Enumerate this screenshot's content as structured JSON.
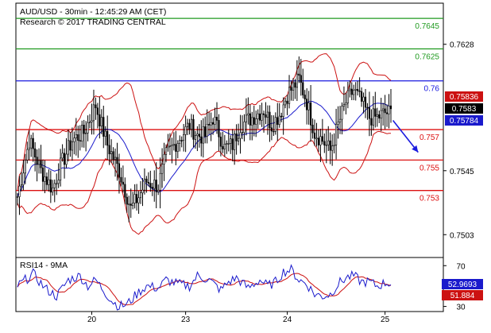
{
  "header": {
    "line1": "AUD/USD - 30min - 12:45:29 AM (CET)",
    "line2": "Research © 2017 TRADING CENTRAL"
  },
  "colors": {
    "resistance": "#1f9a1f",
    "pivot": "#1a1adf",
    "support": "#dd1111",
    "candle": "#000000",
    "bollinger": "#cc1111",
    "ma": "#1a1acc",
    "rsi": "#1a1acc",
    "rsi_ma": "#cc1111",
    "forecast_arrow": "#1a1adf"
  },
  "chart_data": [
    {
      "type": "candlestick",
      "ylim": [
        0.7488,
        0.7655
      ],
      "y_ticks": [
        "0.7628",
        "0.7545",
        "0.7503"
      ],
      "y_tick_values": [
        0.7628,
        0.7545,
        0.7503
      ],
      "x_ticks": [
        "20",
        "23",
        "24",
        "25"
      ],
      "x_tick_index": [
        38,
        86,
        138,
        188
      ],
      "n_bars": 192,
      "levels": [
        {
          "label": "0.7645",
          "value": 0.7645,
          "kind": "resistance"
        },
        {
          "label": "0.7625",
          "value": 0.7625,
          "kind": "resistance"
        },
        {
          "label": "0.76",
          "value": 0.7604,
          "kind": "pivot"
        },
        {
          "label": "0.757",
          "value": 0.7572,
          "kind": "support"
        },
        {
          "label": "0.755",
          "value": 0.7552,
          "kind": "support"
        },
        {
          "label": "0.753",
          "value": 0.7532,
          "kind": "support"
        }
      ],
      "price_tags": [
        {
          "label": "0.75836",
          "value": 0.75836,
          "kind": "bollinger"
        },
        {
          "label": "0.7583",
          "value": 0.7583,
          "kind": "last"
        },
        {
          "label": "0.75784",
          "value": 0.75784,
          "kind": "ma"
        }
      ],
      "path_points": [
        [
          0,
          0.7528
        ],
        [
          6,
          0.7565
        ],
        [
          12,
          0.7545
        ],
        [
          18,
          0.7533
        ],
        [
          22,
          0.7548
        ],
        [
          28,
          0.7565
        ],
        [
          34,
          0.757
        ],
        [
          40,
          0.7588
        ],
        [
          46,
          0.7562
        ],
        [
          52,
          0.7545
        ],
        [
          58,
          0.752
        ],
        [
          62,
          0.7528
        ],
        [
          66,
          0.7538
        ],
        [
          72,
          0.7535
        ],
        [
          76,
          0.7555
        ],
        [
          82,
          0.7565
        ],
        [
          88,
          0.7575
        ],
        [
          92,
          0.7568
        ],
        [
          96,
          0.7568
        ],
        [
          100,
          0.758
        ],
        [
          106,
          0.756
        ],
        [
          110,
          0.7562
        ],
        [
          114,
          0.7575
        ],
        [
          120,
          0.758
        ],
        [
          126,
          0.7585
        ],
        [
          130,
          0.7575
        ],
        [
          134,
          0.7582
        ],
        [
          138,
          0.7595
        ],
        [
          144,
          0.7605
        ],
        [
          148,
          0.759
        ],
        [
          152,
          0.757
        ],
        [
          156,
          0.7565
        ],
        [
          160,
          0.7558
        ],
        [
          164,
          0.7575
        ],
        [
          168,
          0.759
        ],
        [
          172,
          0.7598
        ],
        [
          176,
          0.759
        ],
        [
          180,
          0.758
        ],
        [
          184,
          0.758
        ],
        [
          188,
          0.7583
        ]
      ],
      "forecast": {
        "from": [
          188,
          0.7578
        ],
        "to": [
          196,
          0.7555
        ]
      }
    },
    {
      "type": "line",
      "title": "RSI14 - 9MA",
      "ylim": [
        25,
        78
      ],
      "y_ticks": [
        "70",
        "30"
      ],
      "y_tick_values": [
        70,
        30
      ],
      "tags": [
        {
          "label": "52.9693",
          "value": 52.9693,
          "kind": "rsi"
        },
        {
          "label": "51.884",
          "value": 51.884,
          "kind": "rsi_ma"
        }
      ],
      "rsi_path": [
        [
          0,
          50
        ],
        [
          8,
          62
        ],
        [
          14,
          48
        ],
        [
          20,
          40
        ],
        [
          26,
          56
        ],
        [
          32,
          60
        ],
        [
          36,
          50
        ],
        [
          40,
          56
        ],
        [
          44,
          46
        ],
        [
          48,
          36
        ],
        [
          52,
          30
        ],
        [
          56,
          32
        ],
        [
          62,
          44
        ],
        [
          66,
          50
        ],
        [
          72,
          48
        ],
        [
          76,
          56
        ],
        [
          82,
          52
        ],
        [
          88,
          50
        ],
        [
          92,
          60
        ],
        [
          98,
          56
        ],
        [
          104,
          46
        ],
        [
          108,
          54
        ],
        [
          112,
          58
        ],
        [
          118,
          48
        ],
        [
          124,
          56
        ],
        [
          128,
          50
        ],
        [
          132,
          54
        ],
        [
          136,
          64
        ],
        [
          140,
          66
        ],
        [
          144,
          56
        ],
        [
          148,
          52
        ],
        [
          152,
          42
        ],
        [
          156,
          40
        ],
        [
          160,
          42
        ],
        [
          164,
          52
        ],
        [
          168,
          58
        ],
        [
          172,
          60
        ],
        [
          176,
          54
        ],
        [
          180,
          54
        ],
        [
          184,
          50
        ],
        [
          188,
          53
        ]
      ]
    }
  ]
}
